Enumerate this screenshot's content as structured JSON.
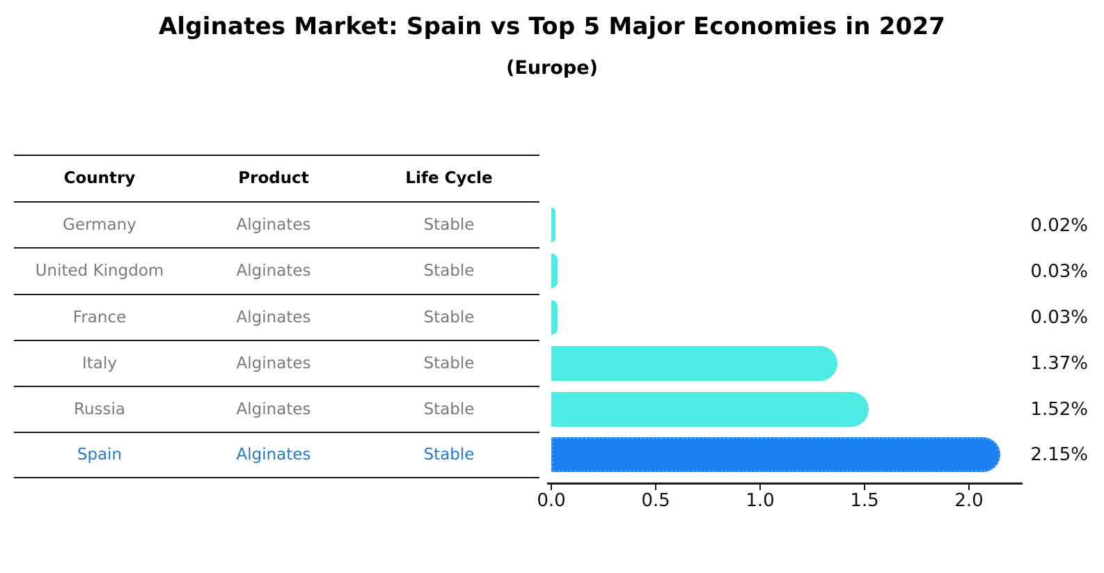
{
  "header": {
    "title": "Alginates Market: Spain vs Top 5 Major Economies in 2027",
    "subtitle": "(Europe)"
  },
  "table": {
    "headers": [
      "Country",
      "Product",
      "Life Cycle"
    ],
    "rows": [
      {
        "country": "Germany",
        "product": "Alginates",
        "life_cycle": "Stable"
      },
      {
        "country": "United Kingdom",
        "product": "Alginates",
        "life_cycle": "Stable"
      },
      {
        "country": "France",
        "product": "Alginates",
        "life_cycle": "Stable"
      },
      {
        "country": "Italy",
        "product": "Alginates",
        "life_cycle": "Stable"
      },
      {
        "country": "Russia",
        "product": "Alginates",
        "life_cycle": "Stable"
      },
      {
        "country": "Spain",
        "product": "Alginates",
        "life_cycle": "Stable"
      }
    ]
  },
  "chart_data": {
    "type": "bar",
    "orientation": "horizontal",
    "title": "Alginates Market: Spain vs Top 5 Major Economies in 2027",
    "subtitle": "(Europe)",
    "categories": [
      "Germany",
      "United Kingdom",
      "France",
      "Italy",
      "Russia",
      "Spain"
    ],
    "values": [
      0.02,
      0.03,
      0.03,
      1.37,
      1.52,
      2.15
    ],
    "value_labels": [
      "0.02%",
      "0.03%",
      "0.03%",
      "1.37%",
      "1.52%",
      "2.15%"
    ],
    "xlim": [
      0,
      2.26
    ],
    "xticks": [
      "0.0",
      "0.5",
      "1.0",
      "1.5",
      "2.0"
    ],
    "xtick_values": [
      0.0,
      0.5,
      1.0,
      1.5,
      2.0
    ],
    "grid": false,
    "legend": false,
    "highlight_category": "Spain",
    "bar_color": "#4DEBE3",
    "highlight_color": "#1A80F0",
    "highlight_edge_color": "#4597F2",
    "highlight_text_color": "#2878C8",
    "row_text_color": "#7a7a7a"
  }
}
